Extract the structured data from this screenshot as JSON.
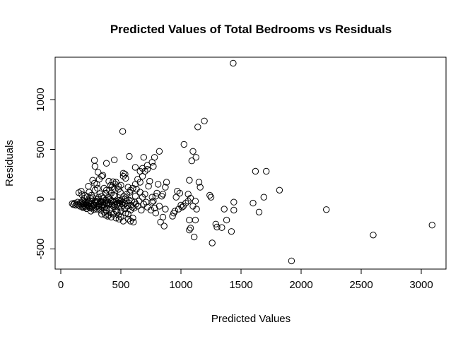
{
  "chart_data": {
    "type": "scatter",
    "title": "Predicted Values of Total Bedrooms vs Residuals",
    "xlabel": "Predicted Values",
    "ylabel": "Residuals",
    "xlim": [
      0,
      3150
    ],
    "ylim": [
      -700,
      1400
    ],
    "xticks": [
      0,
      500,
      1000,
      1500,
      2000,
      2500,
      3000
    ],
    "yticks": [
      -500,
      0,
      500,
      1000
    ],
    "grid": false,
    "legend": "none",
    "marker": "open-circle",
    "points": [
      [
        95,
        -45
      ],
      [
        105,
        -55
      ],
      [
        115,
        -40
      ],
      [
        125,
        -60
      ],
      [
        135,
        -50
      ],
      [
        140,
        -30
      ],
      [
        150,
        65
      ],
      [
        160,
        -70
      ],
      [
        170,
        80
      ],
      [
        175,
        45
      ],
      [
        180,
        -20
      ],
      [
        185,
        -85
      ],
      [
        190,
        -60
      ],
      [
        195,
        10
      ],
      [
        200,
        -35
      ],
      [
        205,
        -80
      ],
      [
        210,
        -50
      ],
      [
        215,
        -95
      ],
      [
        220,
        25
      ],
      [
        225,
        -65
      ],
      [
        230,
        -40
      ],
      [
        235,
        70
      ],
      [
        240,
        -15
      ],
      [
        245,
        -90
      ],
      [
        250,
        5
      ],
      [
        255,
        40
      ],
      [
        260,
        -75
      ],
      [
        265,
        15
      ],
      [
        270,
        -55
      ],
      [
        275,
        -105
      ],
      [
        280,
        160
      ],
      [
        285,
        90
      ],
      [
        290,
        -30
      ],
      [
        295,
        -20
      ],
      [
        300,
        -5
      ],
      [
        305,
        110
      ],
      [
        310,
        -65
      ],
      [
        315,
        20
      ],
      [
        320,
        -45
      ],
      [
        325,
        55
      ],
      [
        330,
        -110
      ],
      [
        335,
        -25
      ],
      [
        340,
        30
      ],
      [
        345,
        -80
      ],
      [
        350,
        -60
      ],
      [
        355,
        10
      ],
      [
        360,
        -130
      ],
      [
        365,
        -35
      ],
      [
        370,
        -160
      ],
      [
        375,
        60
      ],
      [
        380,
        -90
      ],
      [
        385,
        -15
      ],
      [
        390,
        -170
      ],
      [
        395,
        20
      ],
      [
        400,
        -55
      ],
      [
        405,
        90
      ],
      [
        410,
        -100
      ],
      [
        415,
        140
      ],
      [
        420,
        -140
      ],
      [
        425,
        120
      ],
      [
        430,
        -20
      ],
      [
        435,
        175
      ],
      [
        440,
        -75
      ],
      [
        445,
        110
      ],
      [
        450,
        35
      ],
      [
        455,
        150
      ],
      [
        460,
        -190
      ],
      [
        465,
        -60
      ],
      [
        470,
        -130
      ],
      [
        475,
        -40
      ],
      [
        480,
        130
      ],
      [
        485,
        -200
      ],
      [
        490,
        -10
      ],
      [
        495,
        70
      ],
      [
        500,
        -120
      ],
      [
        505,
        -80
      ],
      [
        510,
        0
      ],
      [
        515,
        -30
      ],
      [
        520,
        -60
      ],
      [
        525,
        30
      ],
      [
        530,
        -95
      ],
      [
        535,
        -45
      ],
      [
        540,
        15
      ],
      [
        545,
        -20
      ],
      [
        550,
        50
      ],
      [
        555,
        -70
      ],
      [
        560,
        -150
      ],
      [
        565,
        -40
      ],
      [
        570,
        -10
      ],
      [
        575,
        70
      ],
      [
        580,
        -110
      ],
      [
        585,
        -60
      ],
      [
        590,
        -20
      ],
      [
        595,
        -80
      ],
      [
        600,
        -190
      ],
      [
        605,
        -230
      ],
      [
        610,
        -90
      ],
      [
        615,
        -30
      ],
      [
        620,
        30
      ],
      [
        625,
        -50
      ],
      [
        630,
        100
      ],
      [
        640,
        -70
      ],
      [
        650,
        -20
      ],
      [
        660,
        70
      ],
      [
        670,
        -110
      ],
      [
        680,
        20
      ],
      [
        690,
        -50
      ],
      [
        700,
        50
      ],
      [
        710,
        -30
      ],
      [
        720,
        -80
      ],
      [
        730,
        130
      ],
      [
        740,
        180
      ],
      [
        750,
        -110
      ],
      [
        760,
        20
      ],
      [
        770,
        -20
      ],
      [
        780,
        -90
      ],
      [
        790,
        -140
      ],
      [
        800,
        60
      ],
      [
        810,
        150
      ],
      [
        820,
        -70
      ],
      [
        830,
        -230
      ],
      [
        840,
        30
      ],
      [
        850,
        -180
      ],
      [
        860,
        -270
      ],
      [
        870,
        -100
      ],
      [
        880,
        170
      ],
      [
        200,
        40
      ],
      [
        250,
        -120
      ],
      [
        300,
        -100
      ],
      [
        320,
        -80
      ],
      [
        340,
        -150
      ],
      [
        360,
        -90
      ],
      [
        380,
        -120
      ],
      [
        400,
        -160
      ],
      [
        420,
        -180
      ],
      [
        440,
        -150
      ],
      [
        460,
        -120
      ],
      [
        480,
        -160
      ],
      [
        500,
        -180
      ],
      [
        520,
        -220
      ],
      [
        540,
        -140
      ],
      [
        560,
        -200
      ],
      [
        580,
        -220
      ],
      [
        150,
        -60
      ],
      [
        160,
        -40
      ],
      [
        170,
        -30
      ],
      [
        180,
        -75
      ],
      [
        190,
        -45
      ],
      [
        200,
        -70
      ],
      [
        210,
        -30
      ],
      [
        220,
        -60
      ],
      [
        230,
        -20
      ],
      [
        240,
        -80
      ],
      [
        250,
        -45
      ],
      [
        260,
        -20
      ],
      [
        270,
        -90
      ],
      [
        280,
        -60
      ],
      [
        290,
        -40
      ],
      [
        300,
        -75
      ],
      [
        310,
        -25
      ],
      [
        320,
        -55
      ],
      [
        330,
        -20
      ],
      [
        340,
        -65
      ],
      [
        350,
        -30
      ],
      [
        360,
        -55
      ],
      [
        370,
        -10
      ],
      [
        380,
        -45
      ],
      [
        390,
        -30
      ],
      [
        400,
        -5
      ],
      [
        410,
        -40
      ],
      [
        420,
        -25
      ],
      [
        430,
        -60
      ],
      [
        440,
        -30
      ],
      [
        450,
        -55
      ],
      [
        460,
        -25
      ],
      [
        470,
        -50
      ],
      [
        480,
        -15
      ],
      [
        490,
        -40
      ],
      [
        500,
        -20
      ],
      [
        510,
        -45
      ],
      [
        300,
        150
      ],
      [
        320,
        200
      ],
      [
        340,
        230
      ],
      [
        360,
        110
      ],
      [
        380,
        90
      ],
      [
        400,
        180
      ],
      [
        420,
        60
      ],
      [
        440,
        40
      ],
      [
        460,
        170
      ],
      [
        480,
        100
      ],
      [
        500,
        140
      ],
      [
        520,
        230
      ],
      [
        540,
        210
      ],
      [
        560,
        120
      ],
      [
        580,
        90
      ],
      [
        600,
        110
      ],
      [
        620,
        150
      ],
      [
        640,
        200
      ],
      [
        660,
        170
      ],
      [
        680,
        230
      ],
      [
        700,
        280
      ],
      [
        720,
        300
      ],
      [
        680,
        310
      ],
      [
        720,
        340
      ],
      [
        760,
        370
      ],
      [
        690,
        420
      ],
      [
        780,
        420
      ],
      [
        770,
        330
      ],
      [
        820,
        480
      ],
      [
        570,
        430
      ],
      [
        535,
        250
      ],
      [
        520,
        260
      ],
      [
        445,
        395
      ],
      [
        380,
        360
      ],
      [
        280,
        390
      ],
      [
        285,
        330
      ],
      [
        265,
        190
      ],
      [
        310,
        270
      ],
      [
        350,
        240
      ],
      [
        230,
        130
      ],
      [
        515,
        680
      ],
      [
        1025,
        550
      ],
      [
        1090,
        385
      ],
      [
        1100,
        480
      ],
      [
        1125,
        420
      ],
      [
        1140,
        725
      ],
      [
        1195,
        785
      ],
      [
        1435,
        1365
      ],
      [
        960,
        20
      ],
      [
        970,
        80
      ],
      [
        980,
        -100
      ],
      [
        990,
        60
      ],
      [
        1000,
        -60
      ],
      [
        1010,
        -80
      ],
      [
        1020,
        -70
      ],
      [
        1040,
        -40
      ],
      [
        1060,
        -20
      ],
      [
        1080,
        10
      ],
      [
        1100,
        -70
      ],
      [
        1120,
        -20
      ],
      [
        1130,
        -100
      ],
      [
        1150,
        170
      ],
      [
        1070,
        190
      ],
      [
        1060,
        50
      ],
      [
        1160,
        120
      ],
      [
        930,
        -170
      ],
      [
        940,
        -140
      ],
      [
        950,
        -120
      ],
      [
        1070,
        -210
      ],
      [
        1120,
        -210
      ],
      [
        1080,
        -290
      ],
      [
        1070,
        -310
      ],
      [
        1110,
        -380
      ],
      [
        1290,
        -250
      ],
      [
        1300,
        -280
      ],
      [
        1340,
        -285
      ],
      [
        1360,
        -100
      ],
      [
        1380,
        -210
      ],
      [
        1420,
        -325
      ],
      [
        1440,
        -110
      ],
      [
        1440,
        -30
      ],
      [
        1260,
        -440
      ],
      [
        1240,
        40
      ],
      [
        1250,
        20
      ],
      [
        1600,
        -40
      ],
      [
        1620,
        280
      ],
      [
        1650,
        -130
      ],
      [
        1690,
        20
      ],
      [
        1710,
        280
      ],
      [
        1820,
        90
      ],
      [
        1920,
        -620
      ],
      [
        2210,
        -105
      ],
      [
        2600,
        -360
      ],
      [
        3090,
        -260
      ],
      [
        760,
        -30
      ],
      [
        790,
        30
      ],
      [
        850,
        50
      ],
      [
        870,
        120
      ],
      [
        620,
        320
      ],
      [
        660,
        280
      ]
    ]
  }
}
